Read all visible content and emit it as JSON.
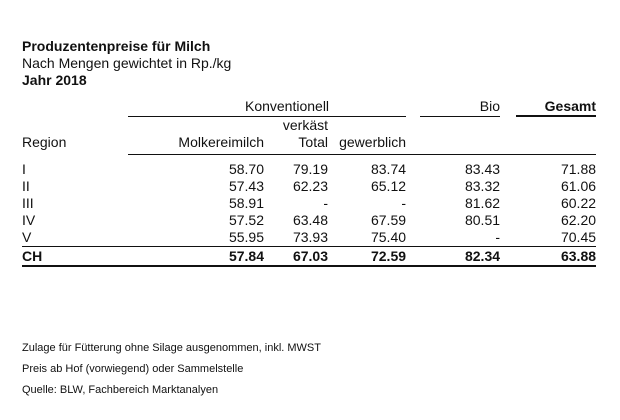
{
  "title": "Produzentenpreise für Milch",
  "subtitle": "Nach Mengen gewichtet in Rp./kg",
  "year": "Jahr 2018",
  "header": {
    "group_konventionell": "Konventionell",
    "group_bio": "Bio",
    "group_gesamt": "Gesamt",
    "verkaest": "verkäst",
    "col_region": "Region",
    "col_molkereimilch": "Molkereimilch",
    "col_total": "Total",
    "col_gewerblich": "gewerblich"
  },
  "rows": [
    {
      "region": "I",
      "molkereimilch": "58.70",
      "total": "79.19",
      "gewerblich": "83.74",
      "bio": "83.43",
      "gesamt": "71.88"
    },
    {
      "region": "II",
      "molkereimilch": "57.43",
      "total": "62.23",
      "gewerblich": "65.12",
      "bio": "83.32",
      "gesamt": "61.06"
    },
    {
      "region": "III",
      "molkereimilch": "58.91",
      "total": "-",
      "gewerblich": "-",
      "bio": "81.62",
      "gesamt": "60.22"
    },
    {
      "region": "IV",
      "molkereimilch": "57.52",
      "total": "63.48",
      "gewerblich": "67.59",
      "bio": "80.51",
      "gesamt": "62.20"
    },
    {
      "region": "V",
      "molkereimilch": "55.95",
      "total": "73.93",
      "gewerblich": "75.40",
      "bio": "-",
      "gesamt": "70.45"
    }
  ],
  "total_row": {
    "region": "CH",
    "molkereimilch": "57.84",
    "total": "67.03",
    "gewerblich": "72.59",
    "bio": "82.34",
    "gesamt": "63.88"
  },
  "notes": [
    "Zulage für Fütterung ohne Silage ausgenommen, inkl. MWST",
    "Preis ab Hof (vorwiegend) oder Sammelstelle",
    "Quelle: BLW, Fachbereich Marktanalyen"
  ]
}
